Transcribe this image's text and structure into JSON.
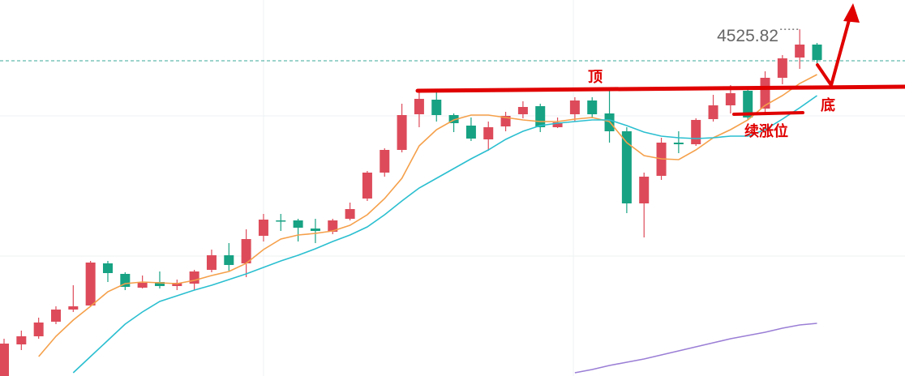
{
  "chart_data": {
    "type": "candlestick",
    "ylim": [
      4098,
      4562
    ],
    "up_color": "#dd4b5a",
    "down_color": "#17a283",
    "open": [
      4098,
      4137,
      4147,
      4165,
      4180,
      4185,
      4237,
      4224,
      4207,
      4214,
      4209,
      4212,
      4229,
      4247,
      4237,
      4271,
      4290,
      4290,
      4280,
      4276,
      4292,
      4317,
      4349,
      4377,
      4421,
      4439,
      4420,
      4407,
      4390,
      4406,
      4421,
      4431,
      4405,
      4421,
      4438,
      4422,
      4400,
      4311,
      4345,
      4386,
      4384,
      4415,
      4432,
      4450,
      4428,
      4466,
      4491,
      4507
    ],
    "high": [
      4144,
      4154,
      4170,
      4184,
      4210,
      4240,
      4240,
      4226,
      4222,
      4227,
      4217,
      4229,
      4254,
      4262,
      4279,
      4298,
      4298,
      4292,
      4292,
      4292,
      4312,
      4351,
      4379,
      4434,
      4450,
      4449,
      4422,
      4417,
      4412,
      4424,
      4437,
      4434,
      4417,
      4442,
      4442,
      4450,
      4405,
      4349,
      4392,
      4400,
      4416,
      4445,
      4457,
      4454,
      4474,
      4494,
      4525.82,
      4509
    ],
    "low": [
      4098,
      4130,
      4144,
      4162,
      4177,
      4184,
      4214,
      4204,
      4206,
      4206,
      4204,
      4204,
      4226,
      4228,
      4220,
      4264,
      4277,
      4264,
      4262,
      4273,
      4290,
      4314,
      4344,
      4374,
      4405,
      4412,
      4399,
      4388,
      4376,
      4400,
      4416,
      4399,
      4404,
      4412,
      4416,
      4386,
      4299,
      4269,
      4340,
      4373,
      4382,
      4412,
      4422,
      4414,
      4422,
      4458,
      4477,
      4484
    ],
    "close": [
      4138,
      4147,
      4164,
      4180,
      4184,
      4238,
      4225,
      4208,
      4213,
      4209,
      4213,
      4227,
      4247,
      4235,
      4267,
      4291,
      4289,
      4281,
      4277,
      4290,
      4304,
      4349,
      4377,
      4420,
      4440,
      4420,
      4410,
      4391,
      4405,
      4419,
      4430,
      4405,
      4411,
      4438,
      4421,
      4400,
      4311,
      4344,
      4386,
      4384,
      4414,
      4432,
      4447,
      4417,
      4466,
      4490,
      4507,
      4488
    ],
    "lines": [
      {
        "color": "#f5a04a",
        "values": [
          null,
          null,
          4122,
          4147,
          4167,
          4184,
          4202,
          4212,
          4214,
          4213,
          4212,
          4216,
          4222,
          4227,
          4237,
          4254,
          4267,
          4272,
          4274,
          4277,
          4284,
          4297,
          4317,
          4342,
          4382,
          4402,
          4414,
          4420,
          4420,
          4417,
          4414,
          4412,
          4412,
          4415,
          4417,
          4412,
          4386,
          4370,
          4366,
          4365,
          4377,
          4392,
          4402,
          4414,
          4432,
          4444,
          4459,
          4470
        ]
      },
      {
        "color": "#2bbfd0",
        "values": [
          null,
          null,
          null,
          null,
          4102,
          4122,
          4142,
          4162,
          4177,
          4190,
          4197,
          4204,
          4210,
          4217,
          4224,
          4232,
          4240,
          4247,
          4255,
          4264,
          4272,
          4282,
          4297,
          4314,
          4330,
          4342,
          4354,
          4366,
          4377,
          4390,
          4400,
          4407,
          4410,
          4412,
          4414,
          4414,
          4407,
          4399,
          4394,
          4392,
          4391,
          4392,
          4394,
          4394,
          4402,
          4415,
          4429,
          4444
        ]
      },
      {
        "color": "#9b7fd6",
        "values": [
          null,
          null,
          null,
          null,
          null,
          null,
          null,
          null,
          null,
          null,
          null,
          null,
          null,
          null,
          null,
          null,
          null,
          null,
          null,
          null,
          null,
          null,
          null,
          null,
          null,
          null,
          null,
          null,
          null,
          null,
          null,
          null,
          null,
          4102,
          4106,
          4111,
          4115,
          4119,
          4124,
          4129,
          4134,
          4139,
          4144,
          4148,
          4152,
          4157,
          4161,
          4163
        ]
      }
    ],
    "reference_line": 4487,
    "reference_color": "#3aa89a",
    "high_label": "4525.82",
    "annotations": {
      "top": "顶",
      "bottom": "底",
      "continuation": "续涨位"
    }
  }
}
